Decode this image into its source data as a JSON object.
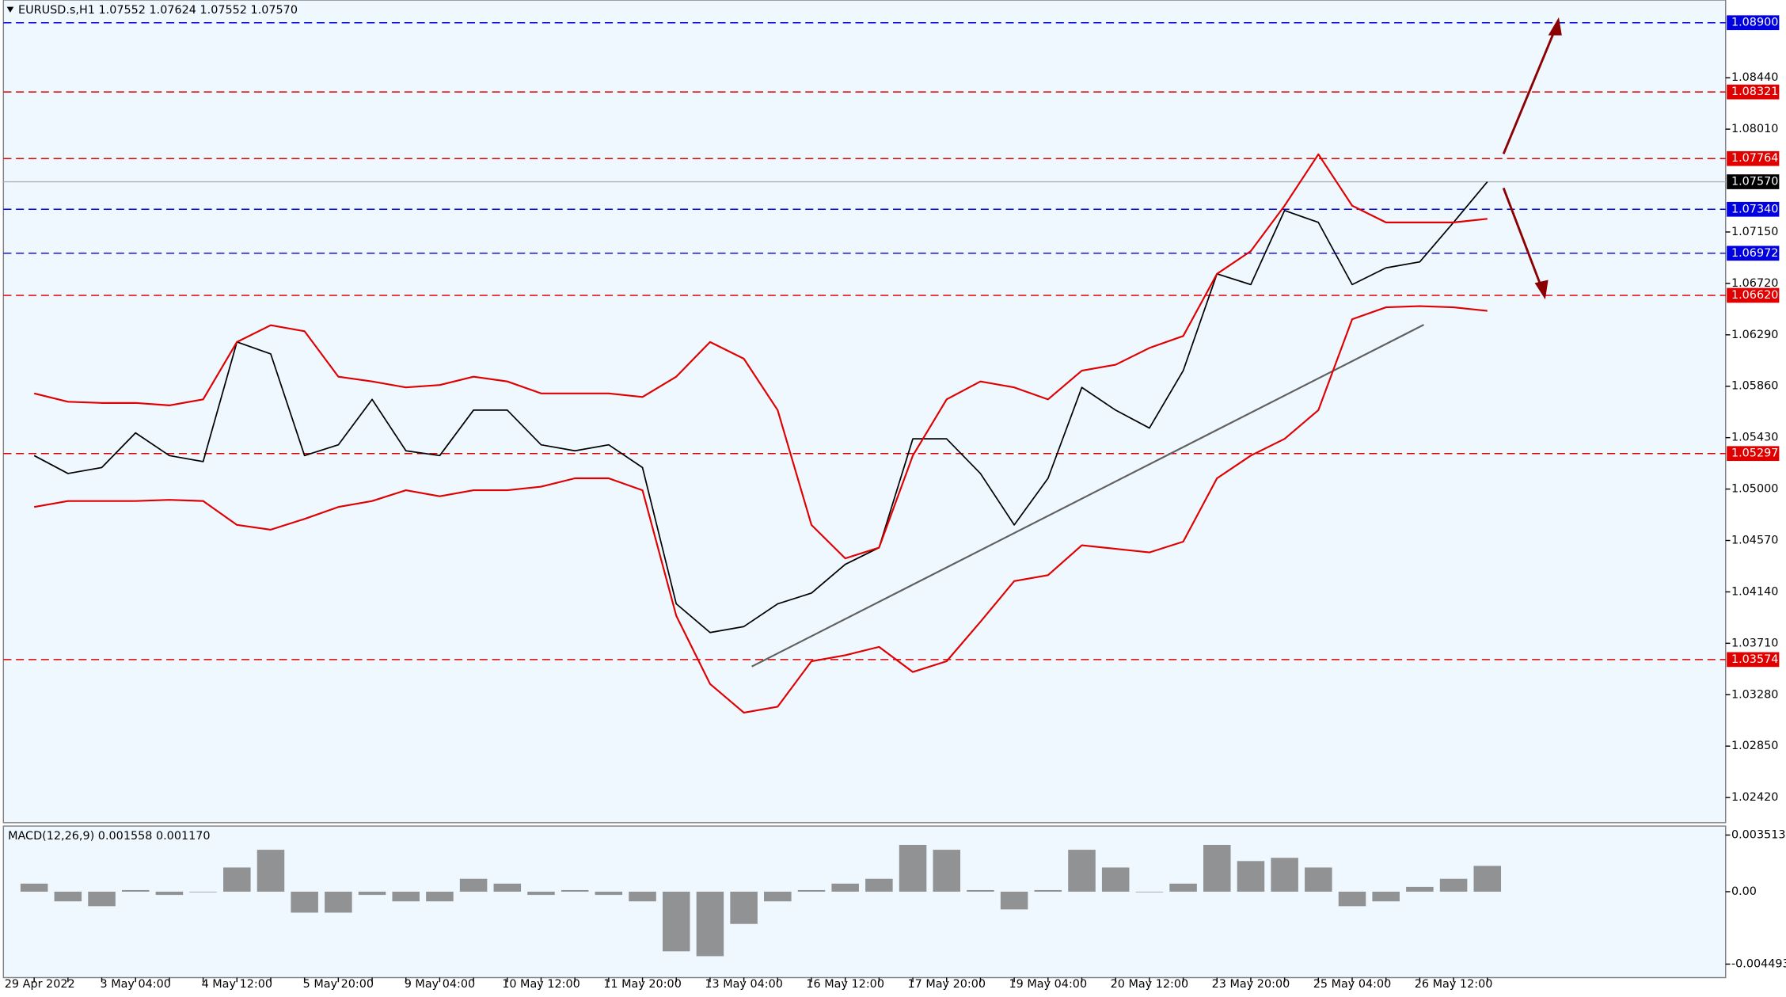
{
  "chart_data": [
    {
      "type": "line",
      "title": "EURUSD.s,H1  1.07552 1.07624 1.07552 1.07570",
      "categories": [
        "29 Apr 2022",
        null,
        null,
        "3 May 04:00",
        null,
        null,
        "4 May 12:00",
        null,
        null,
        "5 May 20:00",
        null,
        null,
        "9 May 04:00",
        null,
        null,
        "10 May 12:00",
        null,
        null,
        "11 May 20:00",
        null,
        null,
        "13 May 04:00",
        null,
        null,
        "16 May 12:00",
        null,
        null,
        "17 May 20:00",
        null,
        null,
        "19 May 04:00",
        null,
        null,
        "20 May 12:00",
        null,
        null,
        "23 May 20:00",
        null,
        null,
        "25 May 04:00",
        null,
        null,
        "26 May 12:00",
        null
      ],
      "series": [
        {
          "color": "#000000",
          "values": [
            1.0528,
            1.0513,
            1.0518,
            1.0547,
            1.0528,
            1.0523,
            1.0623,
            1.0613,
            1.0528,
            1.0537,
            1.0575,
            1.0532,
            1.0528,
            1.0566,
            1.0566,
            1.0537,
            1.0532,
            1.0537,
            1.0518,
            1.0404,
            1.038,
            1.0385,
            1.0404,
            1.0413,
            1.0437,
            1.0451,
            1.0542,
            1.0542,
            1.0513,
            1.047,
            1.0509,
            1.0585,
            1.0566,
            1.0551,
            1.0599,
            1.068,
            1.0671,
            1.0733,
            1.0723,
            1.0671,
            1.0685,
            1.069,
            1.0723,
            1.0757
          ]
        },
        {
          "color": "#e00000",
          "values": [
            1.058,
            1.0573,
            1.0572,
            1.0572,
            1.057,
            1.0575,
            1.0623,
            1.0637,
            1.0632,
            1.0594,
            1.059,
            1.0585,
            1.0587,
            1.0594,
            1.059,
            1.058,
            1.058,
            1.058,
            1.0577,
            1.0594,
            1.0623,
            1.0609,
            1.0566,
            1.047,
            1.0442,
            1.0451,
            1.0528,
            1.0575,
            1.059,
            1.0585,
            1.0575,
            1.0599,
            1.0604,
            1.0618,
            1.0628,
            1.068,
            1.0699,
            1.0737,
            1.078,
            1.0737,
            1.0723,
            1.0723,
            1.0723,
            1.0726
          ]
        },
        {
          "color": "#e00000",
          "values": [
            1.0485,
            1.049,
            1.049,
            1.049,
            1.0491,
            1.049,
            1.047,
            1.0466,
            1.0475,
            1.0485,
            1.049,
            1.0499,
            1.0494,
            1.0499,
            1.0499,
            1.0502,
            1.0509,
            1.0509,
            1.0499,
            1.0394,
            1.0337,
            1.0313,
            1.0318,
            1.0356,
            1.0361,
            1.0368,
            1.0347,
            1.0356,
            1.0389,
            1.0423,
            1.0428,
            1.0453,
            1.045,
            1.0447,
            1.0456,
            1.0509,
            1.0528,
            1.0542,
            1.0566,
            1.0642,
            1.0652,
            1.0653,
            1.0652,
            1.0649
          ]
        }
      ],
      "ylim": [
        1.0221,
        1.0909
      ],
      "yticks": [
        {
          "value": 1.0844,
          "label": "1.08440"
        },
        {
          "value": 1.0801,
          "label": "1.08010"
        },
        {
          "value": 1.0715,
          "label": "1.07150"
        },
        {
          "value": 1.0672,
          "label": "1.06720"
        },
        {
          "value": 1.0629,
          "label": "1.06290"
        },
        {
          "value": 1.0586,
          "label": "1.05860"
        },
        {
          "value": 1.0543,
          "label": "1.05430"
        },
        {
          "value": 1.05,
          "label": "1.05000"
        },
        {
          "value": 1.0457,
          "label": "1.04570"
        },
        {
          "value": 1.0414,
          "label": "1.04140"
        },
        {
          "value": 1.0371,
          "label": "1.03710"
        },
        {
          "value": 1.0328,
          "label": "1.03280"
        },
        {
          "value": 1.0285,
          "label": "1.02850"
        },
        {
          "value": 1.0242,
          "label": "1.02420"
        }
      ],
      "levels": [
        {
          "value": 1.089,
          "label": "1.08900",
          "color": "#0000e0"
        },
        {
          "value": 1.08321,
          "label": "1.08321",
          "color": "#e00000"
        },
        {
          "value": 1.07764,
          "label": "1.07764",
          "color": "#e00000"
        },
        {
          "value": 1.0757,
          "label": "1.07570",
          "color": "#000000"
        },
        {
          "value": 1.0734,
          "label": "1.07340",
          "color": "#0000e0"
        },
        {
          "value": 1.06972,
          "label": "1.06972",
          "color": "#0000e0"
        },
        {
          "value": 1.0662,
          "label": "1.06620",
          "color": "#e00000"
        },
        {
          "value": 1.05297,
          "label": "1.05297",
          "color": "#e00000"
        },
        {
          "value": 1.03574,
          "label": "1.03574",
          "color": "#e00000"
        }
      ]
    },
    {
      "type": "bar",
      "title": "MACD(12,26,9) 0.001558 0.001170",
      "values": [
        0.0005,
        -0.0006,
        -0.0009,
        0.0001,
        -0.0002,
        0,
        0.0015,
        0.0026,
        -0.0013,
        -0.0013,
        -0.0002,
        -0.0006,
        -0.0006,
        0.0008,
        0.0005,
        -0.0002,
        0.0001,
        -0.0002,
        -0.0006,
        -0.0037,
        -0.004,
        -0.002,
        -0.0006,
        0.0001,
        0.0005,
        0.0008,
        0.0029,
        0.0026,
        0.0001,
        -0.0011,
        0.0001,
        0.0026,
        0.0015,
        0,
        0.0005,
        0.0029,
        0.0019,
        0.0021,
        0.0015,
        -0.0009,
        -0.0006,
        0.0003,
        0.0008,
        0.0016
      ],
      "color": "#808080",
      "ylim": [
        -0.00533,
        0.00407
      ],
      "yticks": [
        {
          "value": 0.003513,
          "label": "0.003513"
        },
        {
          "value": 0,
          "label": "0.00"
        },
        {
          "value": -0.004493,
          "label": "-0.004493"
        }
      ]
    }
  ]
}
